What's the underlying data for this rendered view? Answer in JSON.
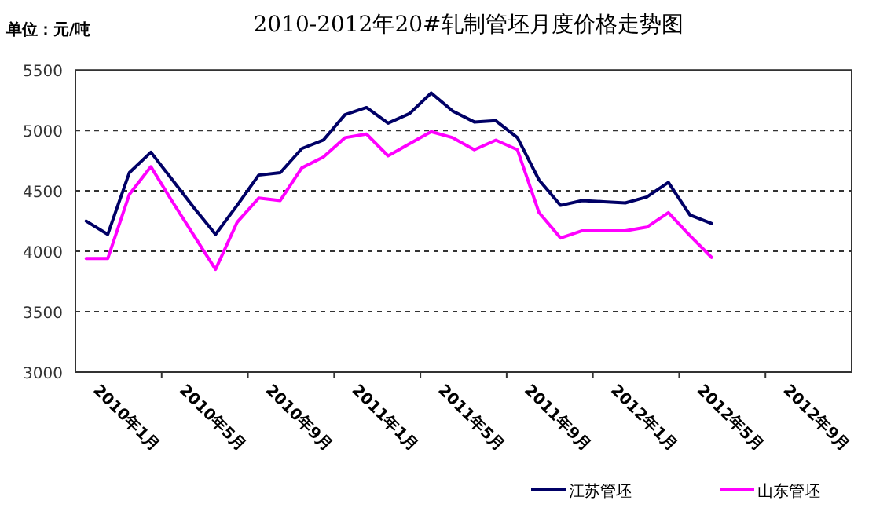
{
  "chart_data": {
    "type": "line",
    "title": "2010-2012年20#轧制管坯月度价格走势图",
    "annotations": [
      "单位：元/吨"
    ],
    "categories": [
      "2010年1月",
      null,
      null,
      null,
      "2010年5月",
      null,
      null,
      null,
      "2010年9月",
      null,
      null,
      null,
      "2011年1月",
      null,
      null,
      null,
      "2011年5月",
      null,
      null,
      null,
      "2011年9月",
      null,
      null,
      null,
      "2012年1月",
      null,
      null,
      null,
      "2012年5月",
      null,
      null,
      null,
      "2012年9月",
      null,
      null,
      null
    ],
    "series": [
      {
        "name": "江苏管坯",
        "color": "#000066",
        "values": [
          4250,
          4140,
          4650,
          4820,
          4590,
          4360,
          4140,
          4380,
          4630,
          4650,
          4850,
          4920,
          5130,
          5190,
          5060,
          5140,
          5310,
          5160,
          5070,
          5080,
          4940,
          4590,
          4380,
          4420,
          4410,
          4400,
          4450,
          4570,
          4300,
          4230,
          null,
          null,
          null,
          null,
          null,
          null
        ]
      },
      {
        "name": "山东管坯",
        "color": "#ff00ff",
        "values": [
          3940,
          3940,
          4470,
          4700,
          4410,
          4130,
          3850,
          4240,
          4440,
          4420,
          4690,
          4780,
          4940,
          4970,
          4790,
          4890,
          4990,
          4940,
          4840,
          4920,
          4840,
          4320,
          4110,
          4170,
          4170,
          4170,
          4200,
          4320,
          4130,
          3950,
          null,
          null,
          null,
          null,
          null,
          null
        ]
      }
    ],
    "ylim": [
      3000,
      5500
    ],
    "yticks": [
      3000,
      3500,
      4000,
      4500,
      5000,
      5500
    ],
    "grid": "y",
    "legend": "bottom right"
  }
}
